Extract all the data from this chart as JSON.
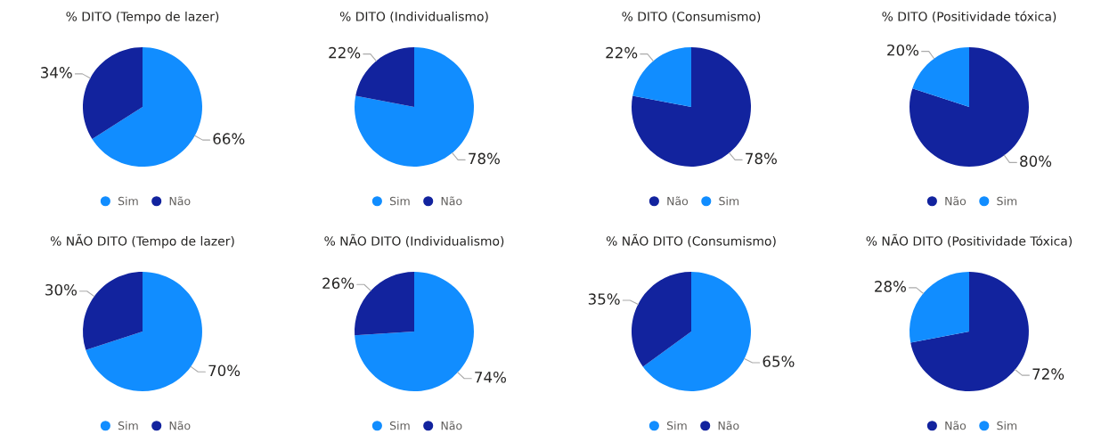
{
  "chart_data": [
    {
      "type": "pie",
      "title": "% DITO (Tempo de lazer)",
      "categories": [
        "Sim",
        "Não"
      ],
      "values": [
        66,
        34
      ],
      "colors": [
        "#118dff",
        "#12239e"
      ],
      "value_labels": [
        "66%",
        "34%"
      ],
      "legend": "bottom"
    },
    {
      "type": "pie",
      "title": "% DITO (Individualismo)",
      "categories": [
        "Sim",
        "Não"
      ],
      "values": [
        78,
        22
      ],
      "colors": [
        "#118dff",
        "#12239e"
      ],
      "value_labels": [
        "78%",
        "22%"
      ],
      "legend": "bottom"
    },
    {
      "type": "pie",
      "title": "% DITO (Consumismo)",
      "categories": [
        "Não",
        "Sim"
      ],
      "values": [
        78,
        22
      ],
      "colors": [
        "#12239e",
        "#118dff"
      ],
      "value_labels": [
        "78%",
        "22%"
      ],
      "legend": "bottom"
    },
    {
      "type": "pie",
      "title": "% DITO (Positividade tóxica)",
      "categories": [
        "Não",
        "Sim"
      ],
      "values": [
        80,
        20
      ],
      "colors": [
        "#12239e",
        "#118dff"
      ],
      "value_labels": [
        "80%",
        "20%"
      ],
      "legend": "bottom"
    },
    {
      "type": "pie",
      "title": "% NÃO DITO (Tempo de lazer)",
      "categories": [
        "Sim",
        "Não"
      ],
      "values": [
        70,
        30
      ],
      "colors": [
        "#118dff",
        "#12239e"
      ],
      "value_labels": [
        "70%",
        "30%"
      ],
      "legend": "bottom"
    },
    {
      "type": "pie",
      "title": "% NÃO DITO (Individualismo)",
      "categories": [
        "Sim",
        "Não"
      ],
      "values": [
        74,
        26
      ],
      "colors": [
        "#118dff",
        "#12239e"
      ],
      "value_labels": [
        "74%",
        "26%"
      ],
      "legend": "bottom"
    },
    {
      "type": "pie",
      "title": "% NÃO DITO (Consumismo)",
      "categories": [
        "Sim",
        "Não"
      ],
      "values": [
        65,
        35
      ],
      "colors": [
        "#118dff",
        "#12239e"
      ],
      "value_labels": [
        "65%",
        "35%"
      ],
      "legend": "bottom"
    },
    {
      "type": "pie",
      "title": "% NÃO DITO (Positividade Tóxica)",
      "categories": [
        "Não",
        "Sim"
      ],
      "values": [
        72,
        28
      ],
      "colors": [
        "#12239e",
        "#118dff"
      ],
      "value_labels": [
        "72%",
        "28%"
      ],
      "legend": "bottom"
    }
  ]
}
